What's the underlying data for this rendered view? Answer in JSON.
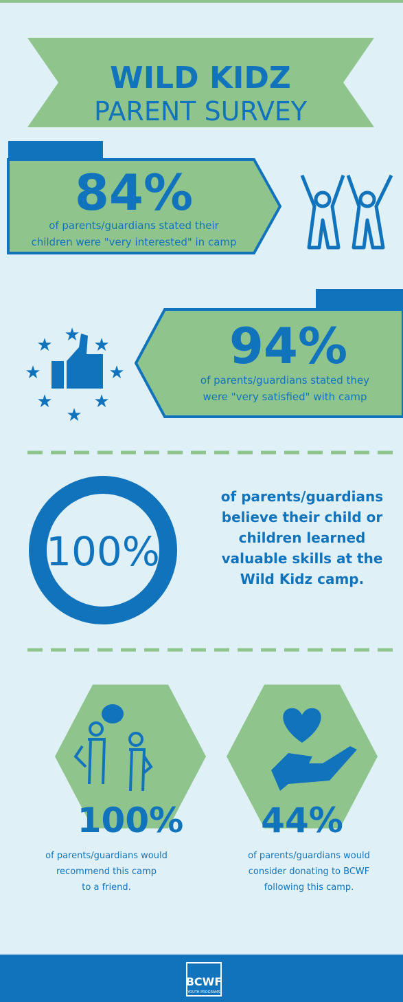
{
  "header": {
    "title": "WILD KIDZ",
    "subtitle": "PARENT SURVEY"
  },
  "stats": [
    {
      "value": "84%",
      "lines": [
        "of parents/guardians stated their",
        "children were \"very interested\" in camp"
      ]
    },
    {
      "value": "94%",
      "lines": [
        "of parents/guardians stated they",
        "were \"very satisfied\" with camp"
      ]
    },
    {
      "value": "100%",
      "lines": [
        "of parents/guardians",
        "believe their child or",
        "children learned",
        "valuable skills at the",
        "Wild Kidz camp."
      ]
    },
    {
      "value": "100%",
      "lines": [
        "of parents/guardians would",
        "recommend this camp",
        "to a friend."
      ]
    },
    {
      "value": "44%",
      "lines": [
        "of parents/guardians would",
        "consider donating to BCWF",
        "following this camp."
      ]
    }
  ],
  "footer": {
    "logo": "BCWF",
    "logo_sub": "YOUTH PROGRAMS"
  }
}
